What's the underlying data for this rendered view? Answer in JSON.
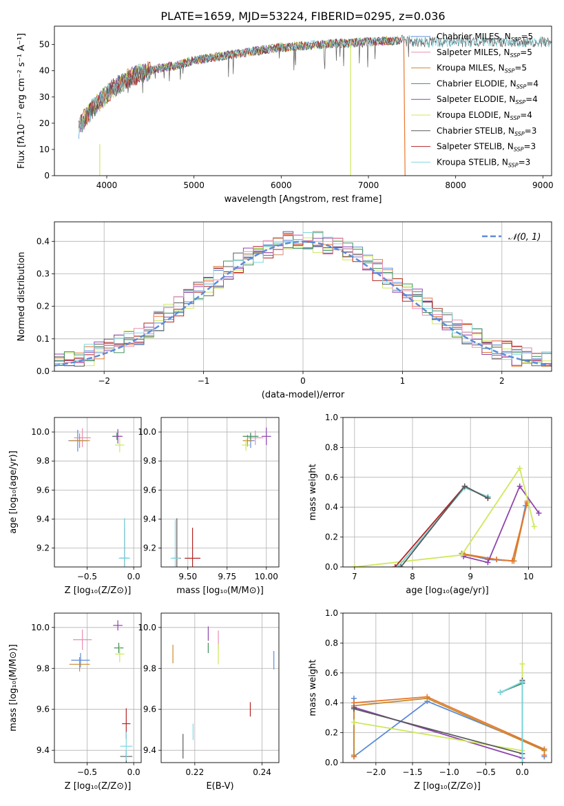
{
  "figure": {
    "title": "PLATE=1659, MJD=53224, FIBERID=0295, z=0.036"
  },
  "colors": {
    "Chabrier MILES": "#5b8bd9",
    "Salpeter MILES": "#e98db3",
    "Kroupa MILES": "#c98a2b",
    "Chabrier ELODIE": "#3f8f5a",
    "Salpeter ELODIE": "#8e44ad",
    "Kroupa ELODIE": "#cde85a",
    "Chabrier STELIB": "#595959",
    "Salpeter STELIB": "#b22222",
    "Kroupa STELIB": "#7fd6e0",
    "orange": "#e8752d",
    "normal": "#5b8bd9"
  },
  "chart_data": [
    {
      "id": "spectrum",
      "type": "line",
      "xlabel": "wavelength [Angstrom, rest frame]",
      "ylabel": "Flux [fλ10⁻¹⁷ erg cm⁻² s⁻¹ A⁻¹]",
      "xlim": [
        3400,
        9100
      ],
      "ylim": [
        0,
        57
      ],
      "xticks": [
        "4000",
        "5000",
        "6000",
        "7000",
        "8000",
        "9000"
      ],
      "yticks": [
        "0",
        "10",
        "20",
        "30",
        "40",
        "50"
      ],
      "legend": "top-right",
      "legend_entries": [
        "Chabrier MILES, N_SSP=5",
        "Salpeter MILES, N_SSP=5",
        "Kroupa MILES, N_SSP=5",
        "Chabrier ELODIE, N_SSP=4",
        "Salpeter ELODIE, N_SSP=4",
        "Kroupa ELODIE, N_SSP=4",
        "Chabrier STELIB, N_SSP=3",
        "Salpeter STELIB, N_SSP=3",
        "Kroupa STELIB, N_SSP=3"
      ],
      "series_model_key": [
        "Chabrier MILES",
        "Salpeter MILES",
        "Kroupa MILES",
        "Chabrier ELODIE",
        "Salpeter ELODIE",
        "Kroupa ELODIE",
        "Chabrier STELIB",
        "Salpeter STELIB",
        "Kroupa STELIB"
      ],
      "continuum_x": [
        3680,
        3750,
        3850,
        4000,
        4100,
        4200,
        4300,
        4400,
        4500,
        4600,
        4700,
        4800,
        4900,
        5000,
        5100,
        5200,
        5300,
        5400,
        5500,
        5600,
        5700,
        5800,
        5900,
        6000,
        6100,
        6200,
        6300,
        6400,
        6500,
        6600,
        6700,
        6800,
        6900,
        7000,
        7100,
        7200,
        7300,
        7400,
        7500
      ],
      "continuum_y": [
        18,
        22,
        26,
        31,
        34,
        36,
        38,
        39,
        40,
        41,
        41.5,
        42,
        43,
        44,
        44.5,
        45,
        45.5,
        46,
        46.5,
        47,
        47.5,
        48,
        48.5,
        49,
        49,
        49.5,
        49.5,
        50,
        50,
        50.5,
        50.5,
        50.5,
        51,
        51,
        51,
        51.5,
        51.5,
        52,
        52
      ]
    },
    {
      "id": "residuals",
      "type": "line",
      "xlabel": "(data-model)/error",
      "ylabel": "Normed distribution",
      "xlim": [
        -2.5,
        2.5
      ],
      "ylim": [
        0,
        0.46
      ],
      "xticks": [
        -2,
        -1,
        0,
        1,
        2
      ],
      "xticklabels": [
        "−2",
        "−1",
        "0",
        "1",
        "2"
      ],
      "yticks": [
        "0.0",
        "0.1",
        "0.2",
        "0.3",
        "0.4"
      ],
      "legend": "top-right",
      "legend_entries": [
        "N(0,1)"
      ],
      "bin_width": 0.1,
      "bins_from": -2.5
    },
    {
      "id": "age_vs_Z",
      "type": "scatter",
      "xlabel": "Z [log₁₀(Z/Z⊙)]",
      "ylabel": "age  [log₁₀(age/yr)]",
      "xlim": [
        -0.85,
        0.08
      ],
      "ylim": [
        9.07,
        10.1
      ],
      "xticks": [
        -0.5,
        0.0
      ],
      "xticklabels": [
        "−0.5",
        "0.0"
      ],
      "yticks": [
        9.2,
        9.4,
        9.6,
        9.8,
        10.0
      ],
      "yticklabels": [
        "9.2",
        "9.4",
        "9.6",
        "9.8",
        "10.0"
      ],
      "points": [
        {
          "m": "Chabrier MILES",
          "x": -0.6,
          "y": 9.94,
          "xe": 0.2,
          "ye": 0.15
        },
        {
          "m": "Salpeter MILES",
          "x": -0.55,
          "y": 9.96,
          "xe": 0.18,
          "ye": 0.13
        },
        {
          "m": "Kroupa MILES",
          "x": -0.58,
          "y": 9.94,
          "xe": 0.22,
          "ye": 0.1
        },
        {
          "m": "Chabrier ELODIE",
          "x": -0.18,
          "y": 9.97,
          "xe": 0.1,
          "ye": 0.05
        },
        {
          "m": "Salpeter ELODIE",
          "x": -0.17,
          "y": 9.97,
          "xe": 0.1,
          "ye": 0.1
        },
        {
          "m": "Kroupa ELODIE",
          "x": -0.15,
          "y": 9.91,
          "xe": 0.1,
          "ye": 0.1
        },
        {
          "m": "Chabrier STELIB",
          "x": -0.1,
          "y": 9.13,
          "xe": 0.1,
          "ye": 0.55
        },
        {
          "m": "Salpeter STELIB",
          "x": -0.1,
          "y": 9.13,
          "xe": 0.08,
          "ye": 0.42
        },
        {
          "m": "Kroupa STELIB",
          "x": -0.1,
          "y": 9.13,
          "xe": 0.12,
          "ye": 0.55
        }
      ]
    },
    {
      "id": "age_vs_mass",
      "type": "scatter",
      "xlabel": "mass [log₁₀(M/M⊙)]",
      "ylabel": "",
      "xlim": [
        9.33,
        10.08
      ],
      "ylim": [
        9.07,
        10.1
      ],
      "xticks": [
        9.5,
        9.75,
        10.0
      ],
      "xticklabels": [
        "9.50",
        "9.75",
        "10.00"
      ],
      "yticks": [
        9.2,
        9.4,
        9.6,
        9.8,
        10.0
      ],
      "yticklabels": [
        "9.2",
        "9.4",
        "9.6",
        "9.8",
        "10.0"
      ],
      "points": [
        {
          "m": "Chabrier MILES",
          "x": 9.9,
          "y": 9.94,
          "xe": 0.05,
          "ye": 0.1
        },
        {
          "m": "Salpeter MILES",
          "x": 9.93,
          "y": 9.96,
          "xe": 0.1,
          "ye": 0.1
        },
        {
          "m": "Kroupa MILES",
          "x": 9.88,
          "y": 9.94,
          "xe": 0.06,
          "ye": 0.08
        },
        {
          "m": "Chabrier ELODIE",
          "x": 9.9,
          "y": 9.97,
          "xe": 0.1,
          "ye": 0.05
        },
        {
          "m": "Salpeter ELODIE",
          "x": 10.0,
          "y": 9.97,
          "xe": 0.06,
          "ye": 0.12
        },
        {
          "m": "Kroupa ELODIE",
          "x": 9.87,
          "y": 9.91,
          "xe": 0.05,
          "ye": 0.08
        },
        {
          "m": "Chabrier STELIB",
          "x": 9.43,
          "y": 9.13,
          "xe": 0.05,
          "ye": 0.55
        },
        {
          "m": "Salpeter STELIB",
          "x": 9.53,
          "y": 9.13,
          "xe": 0.1,
          "ye": 0.42
        },
        {
          "m": "Kroupa STELIB",
          "x": 9.42,
          "y": 9.13,
          "xe": 0.06,
          "ye": 0.53
        }
      ]
    },
    {
      "id": "mass_weight_vs_age",
      "type": "line",
      "xlabel": "age  [log₁₀(age/yr)]",
      "ylabel": "mass weight",
      "xlim": [
        6.8,
        10.4
      ],
      "ylim": [
        0,
        1.0
      ],
      "xticks": [
        7,
        8,
        9,
        10
      ],
      "xticklabels": [
        "7",
        "8",
        "9",
        "10"
      ],
      "yticks": [
        0,
        0.2,
        0.4,
        0.6,
        0.8,
        1.0
      ],
      "yticklabels": [
        "0.0",
        "0.2",
        "0.4",
        "0.6",
        "0.8",
        "1.0"
      ],
      "series": [
        {
          "m": "Chabrier MILES",
          "x": [
            8.85,
            9.3,
            9.75,
            9.95
          ],
          "y": [
            0.09,
            0.05,
            0.04,
            0.41
          ]
        },
        {
          "m": "Kroupa MILES",
          "x": [
            8.85,
            9.45,
            9.75,
            9.98
          ],
          "y": [
            0.09,
            0.05,
            0.04,
            0.44
          ]
        },
        {
          "m": "orange",
          "x": [
            8.9,
            9.45,
            9.72,
            9.98
          ],
          "y": [
            0.08,
            0.05,
            0.04,
            0.43
          ]
        },
        {
          "m": "Salpeter ELODIE",
          "x": [
            8.88,
            9.3,
            9.85,
            10.18
          ],
          "y": [
            0.07,
            0.03,
            0.54,
            0.36
          ]
        },
        {
          "m": "Kroupa ELODIE",
          "x": [
            7.0,
            8.85,
            9.85,
            10.1
          ],
          "y": [
            0.0,
            0.08,
            0.66,
            0.27
          ]
        },
        {
          "m": "Chabrier ELODIE",
          "x": [
            7.75,
            8.9,
            9.3
          ],
          "y": [
            0.0,
            0.53,
            0.47
          ]
        },
        {
          "m": "Salpeter STELIB",
          "x": [
            7.7,
            8.9,
            9.3
          ],
          "y": [
            0.0,
            0.54,
            0.46
          ]
        },
        {
          "m": "Kroupa STELIB",
          "x": [
            7.75,
            8.9,
            9.3
          ],
          "y": [
            0.0,
            0.53,
            0.47
          ]
        },
        {
          "m": "Chabrier STELIB",
          "x": [
            7.8,
            8.9,
            9.3
          ],
          "y": [
            0.0,
            0.54,
            0.46
          ]
        }
      ]
    },
    {
      "id": "mass_vs_Z",
      "type": "scatter",
      "xlabel": "Z [log₁₀(Z/Z⊙)]",
      "ylabel": "mass [log₁₀(M/M⊙)]",
      "xlim": [
        -0.85,
        0.08
      ],
      "ylim": [
        9.34,
        10.07
      ],
      "xticks": [
        -0.5,
        0.0
      ],
      "xticklabels": [
        "−0.5",
        "0.0"
      ],
      "yticks": [
        9.4,
        9.6,
        9.8,
        10.0
      ],
      "yticklabels": [
        "9.4",
        "9.6",
        "9.8",
        "10.0"
      ],
      "points": [
        {
          "m": "Chabrier MILES",
          "x": -0.57,
          "y": 9.84,
          "xe": 0.2,
          "ye": 0.07
        },
        {
          "m": "Salpeter MILES",
          "x": -0.55,
          "y": 9.94,
          "xe": 0.2,
          "ye": 0.1
        },
        {
          "m": "Kroupa MILES",
          "x": -0.58,
          "y": 9.82,
          "xe": 0.22,
          "ye": 0.07
        },
        {
          "m": "Chabrier ELODIE",
          "x": -0.16,
          "y": 9.9,
          "xe": 0.1,
          "ye": 0.05
        },
        {
          "m": "Salpeter ELODIE",
          "x": -0.17,
          "y": 10.01,
          "xe": 0.1,
          "ye": 0.05
        },
        {
          "m": "Kroupa ELODIE",
          "x": -0.15,
          "y": 9.87,
          "xe": 0.1,
          "ye": 0.08
        },
        {
          "m": "Chabrier STELIB",
          "x": -0.08,
          "y": 9.37,
          "xe": 0.13,
          "ye": 0.06
        },
        {
          "m": "Salpeter STELIB",
          "x": -0.08,
          "y": 9.53,
          "xe": 0.09,
          "ye": 0.15
        },
        {
          "m": "Kroupa STELIB",
          "x": -0.08,
          "y": 9.42,
          "xe": 0.13,
          "ye": 0.14
        }
      ]
    },
    {
      "id": "mass_vs_ebv",
      "type": "scatter",
      "xlabel": "E(B-V)",
      "ylabel": "",
      "xlim": [
        0.21,
        0.245
      ],
      "ylim": [
        9.34,
        10.07
      ],
      "xticks": [
        0.22,
        0.24
      ],
      "xticklabels": [
        "0.22",
        "0.24"
      ],
      "yticks": [
        9.4,
        9.6,
        9.8,
        10.0
      ],
      "yticklabels": [
        "9.4",
        "9.6",
        "9.8",
        "10.0"
      ],
      "points": [
        {
          "m": "Chabrier MILES",
          "x": 0.2435,
          "y": 9.84,
          "xe": 0.0,
          "ye": 0.09
        },
        {
          "m": "Salpeter MILES",
          "x": 0.227,
          "y": 9.94,
          "xe": 0.0,
          "ye": 0.09
        },
        {
          "m": "Kroupa MILES",
          "x": 0.2135,
          "y": 9.87,
          "xe": 0.0,
          "ye": 0.09
        },
        {
          "m": "Chabrier ELODIE",
          "x": 0.224,
          "y": 9.9,
          "xe": 0.0,
          "ye": 0.05
        },
        {
          "m": "Salpeter ELODIE",
          "x": 0.224,
          "y": 9.97,
          "xe": 0.0,
          "ye": 0.07
        },
        {
          "m": "Kroupa ELODIE",
          "x": 0.227,
          "y": 9.87,
          "xe": 0.0,
          "ye": 0.1
        },
        {
          "m": "Chabrier STELIB",
          "x": 0.2165,
          "y": 9.42,
          "xe": 0.0,
          "ye": 0.12
        },
        {
          "m": "Salpeter STELIB",
          "x": 0.2365,
          "y": 9.6,
          "xe": 0.0,
          "ye": 0.07
        },
        {
          "m": "Kroupa STELIB",
          "x": 0.2195,
          "y": 9.49,
          "xe": 0.0,
          "ye": 0.08
        }
      ]
    },
    {
      "id": "mass_weight_vs_Z",
      "type": "line",
      "xlabel": "Z [log₁₀(Z/Z⊙)]",
      "ylabel": "mass weight",
      "xlim": [
        -2.45,
        0.4
      ],
      "ylim": [
        0,
        1.0
      ],
      "xticks": [
        -2.0,
        -1.5,
        -1.0,
        -0.5,
        0.0
      ],
      "xticklabels": [
        "−2.0",
        "−1.5",
        "−1.0",
        "−0.5",
        "0.0"
      ],
      "yticks": [
        0,
        0.2,
        0.4,
        0.6,
        0.8,
        1.0
      ],
      "yticklabels": [
        "0.0",
        "0.2",
        "0.4",
        "0.6",
        "0.8",
        "1.0"
      ],
      "series": [
        {
          "m": "Chabrier MILES",
          "x": [
            -2.3,
            -2.3,
            -1.3,
            0.3,
            0.3
          ],
          "y": [
            0.43,
            0.04,
            0.41,
            0.09,
            0.04
          ]
        },
        {
          "m": "orange",
          "x": [
            -2.3,
            -2.3,
            -1.3,
            0.3,
            0.3
          ],
          "y": [
            0.04,
            0.4,
            0.44,
            0.09,
            0.05
          ]
        },
        {
          "m": "Kroupa MILES",
          "x": [
            -2.3,
            -2.3,
            -1.3,
            0.3
          ],
          "y": [
            0.05,
            0.38,
            0.43,
            0.08
          ]
        },
        {
          "m": "Salpeter ELODIE",
          "x": [
            -2.3,
            0.0,
            0.0
          ],
          "y": [
            0.37,
            0.03,
            0.54
          ]
        },
        {
          "m": "Kroupa ELODIE",
          "x": [
            -2.3,
            0.0,
            0.0
          ],
          "y": [
            0.27,
            0.08,
            0.66
          ]
        },
        {
          "m": "Chabrier STELIB",
          "x": [
            -2.3,
            0.0,
            0.0
          ],
          "y": [
            0.36,
            0.06,
            0.55
          ]
        },
        {
          "m": "Chabrier ELODIE",
          "x": [
            -0.3,
            0.0,
            0.0
          ],
          "y": [
            0.47,
            0.53,
            0.0
          ]
        },
        {
          "m": "Kroupa STELIB",
          "x": [
            -0.3,
            0.0,
            0.0
          ],
          "y": [
            0.47,
            0.54,
            0.0
          ]
        }
      ]
    }
  ]
}
